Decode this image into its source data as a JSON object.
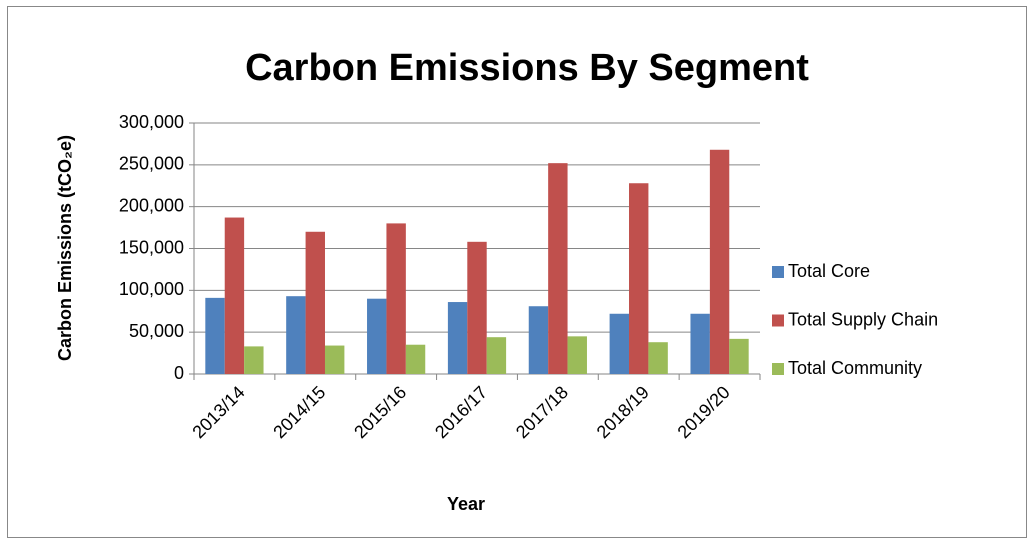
{
  "chart_data": {
    "type": "bar",
    "title": "Carbon Emissions By Segment",
    "x_label": "Year",
    "y_label": "Carbon Emissions (tCO₂e)",
    "categories": [
      "2013/14",
      "2014/15",
      "2015/16",
      "2016/17",
      "2017/18",
      "2018/19",
      "2019/20"
    ],
    "series": [
      {
        "name": "Total Core",
        "color": "#4f81bd",
        "values": [
          91000,
          93000,
          90000,
          86000,
          81000,
          72000,
          72000
        ]
      },
      {
        "name": "Total Supply Chain",
        "color": "#c0504d",
        "values": [
          187000,
          170000,
          180000,
          158000,
          252000,
          228000,
          268000
        ]
      },
      {
        "name": "Total Community",
        "color": "#9bbb59",
        "values": [
          33000,
          34000,
          35000,
          44000,
          45000,
          38000,
          42000
        ]
      }
    ],
    "ylim": [
      0,
      300000
    ],
    "yticks": [
      0,
      {
        "value": 50000,
        "label": "50,000"
      },
      {
        "value": 100000,
        "label": "100,000"
      },
      {
        "value": 150000,
        "label": "150,000"
      },
      {
        "value": 200000,
        "label": "200,000"
      },
      {
        "value": 250000,
        "label": "250,000"
      },
      {
        "value": 300000,
        "label": "300,000"
      }
    ],
    "grid": true,
    "legend": "right"
  }
}
